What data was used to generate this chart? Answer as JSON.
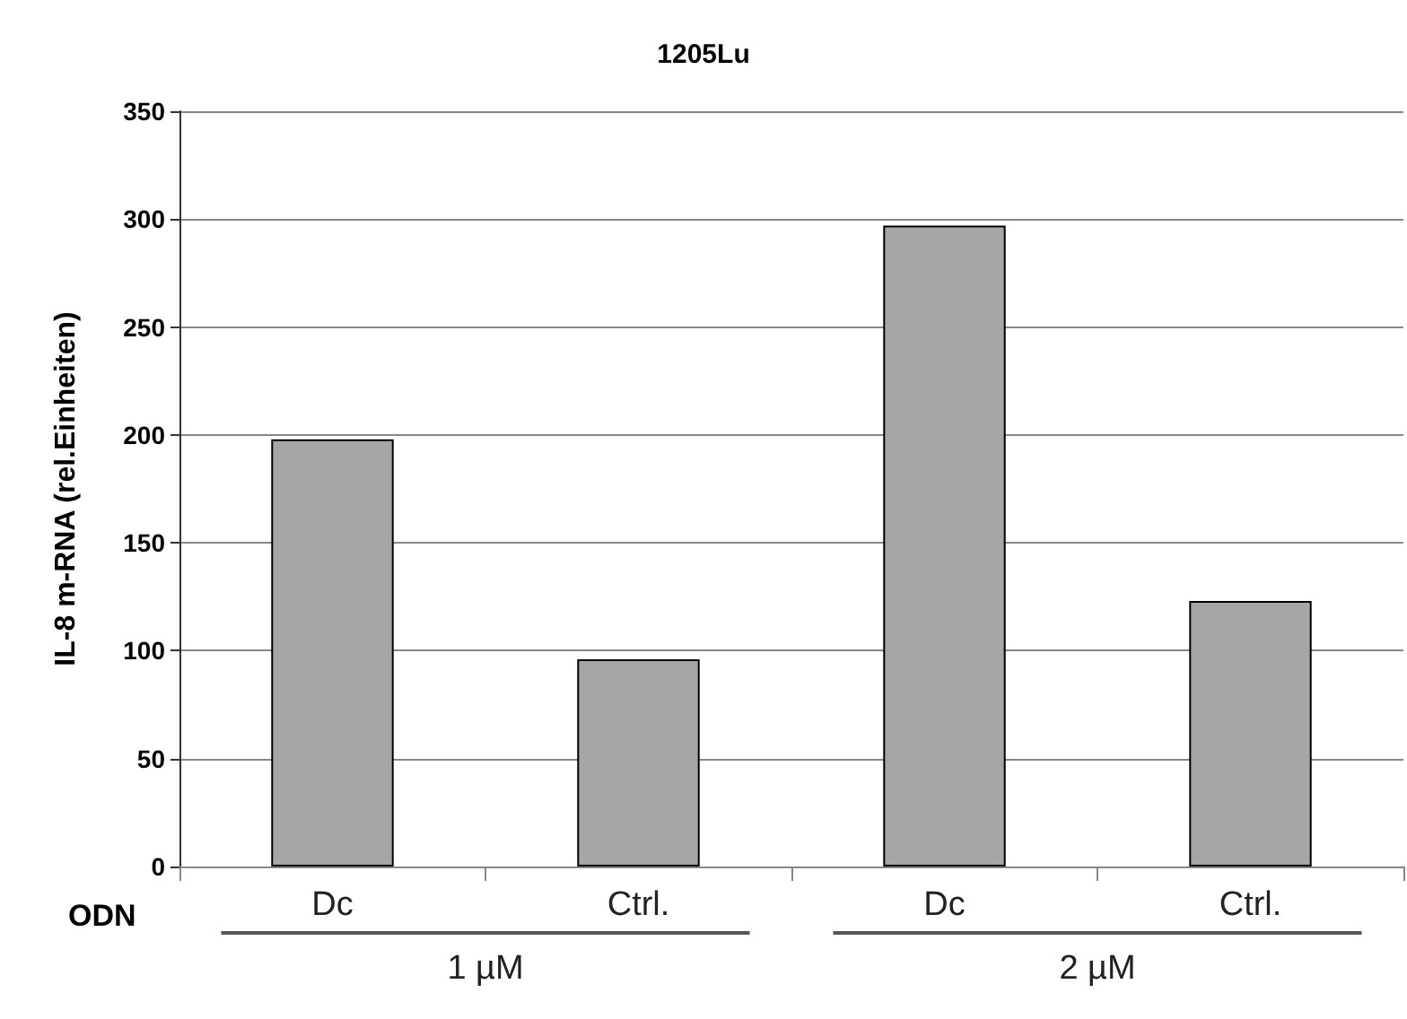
{
  "chart_data": {
    "type": "bar",
    "title": "1205Lu",
    "xlabel": "ODN",
    "ylabel": "IL-8 m-RNA (rel.Einheiten)",
    "categories": [
      "Dc",
      "Ctrl.",
      "Dc",
      "Ctrl."
    ],
    "values": [
      198,
      96,
      297,
      123
    ],
    "color": "#a6a6a6",
    "ylim": [
      0,
      350
    ],
    "yticks": [
      0,
      50,
      100,
      150,
      200,
      250,
      300,
      350
    ],
    "grid": "y",
    "annotations": [
      "1 µM",
      "2 µM"
    ]
  }
}
